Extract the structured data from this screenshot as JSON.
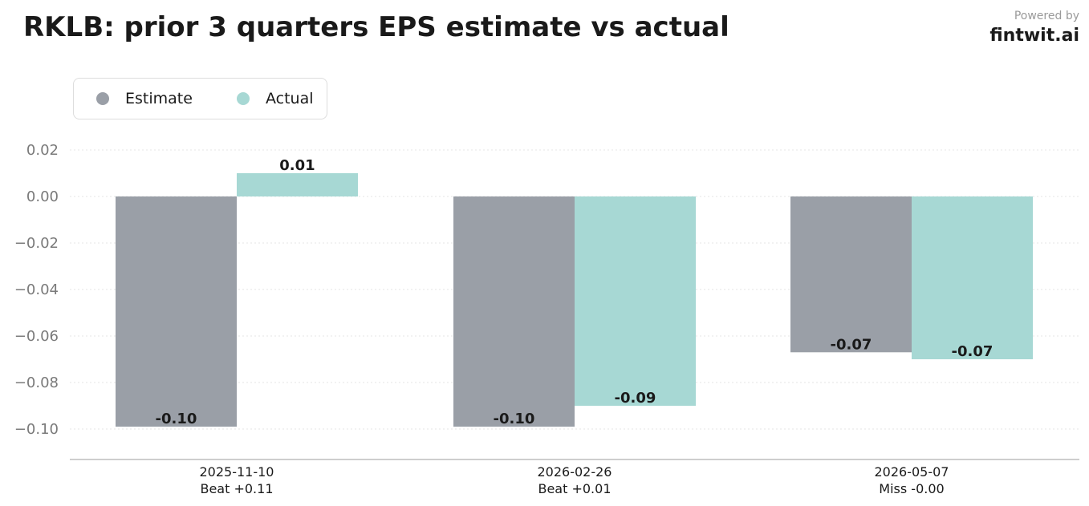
{
  "header": {
    "title": "RKLB: prior 3 quarters EPS estimate vs actual",
    "powered_by": "Powered by",
    "brand": "fintwit.ai"
  },
  "legend": {
    "items": [
      {
        "label": "Estimate",
        "color": "#9a9fa7"
      },
      {
        "label": "Actual",
        "color": "#a7d8d4"
      }
    ]
  },
  "chart_data": {
    "type": "bar",
    "title": "RKLB: prior 3 quarters EPS estimate vs actual",
    "categories": [
      "2025-11-10",
      "2026-02-26",
      "2026-05-07"
    ],
    "category_sublabels": [
      "Beat +0.11",
      "Beat +0.01",
      "Miss -0.00"
    ],
    "series": [
      {
        "name": "Estimate",
        "color": "#9a9fa7",
        "values": [
          -0.099,
          -0.099,
          -0.067
        ],
        "labels": [
          "-0.10",
          "-0.10",
          "-0.07"
        ]
      },
      {
        "name": "Actual",
        "color": "#a7d8d4",
        "values": [
          0.01,
          -0.09,
          -0.07
        ],
        "labels": [
          "0.01",
          "-0.09",
          "-0.07"
        ]
      }
    ],
    "yticks": [
      0.02,
      0.0,
      -0.02,
      -0.04,
      -0.06,
      -0.08,
      -0.1
    ],
    "ytick_labels": [
      "0.02",
      "0.00",
      "−0.02",
      "−0.04",
      "−0.06",
      "−0.08",
      "−0.10"
    ],
    "ylim": [
      -0.1125,
      0.0215
    ],
    "grid": true,
    "legend_position": "top-left"
  }
}
